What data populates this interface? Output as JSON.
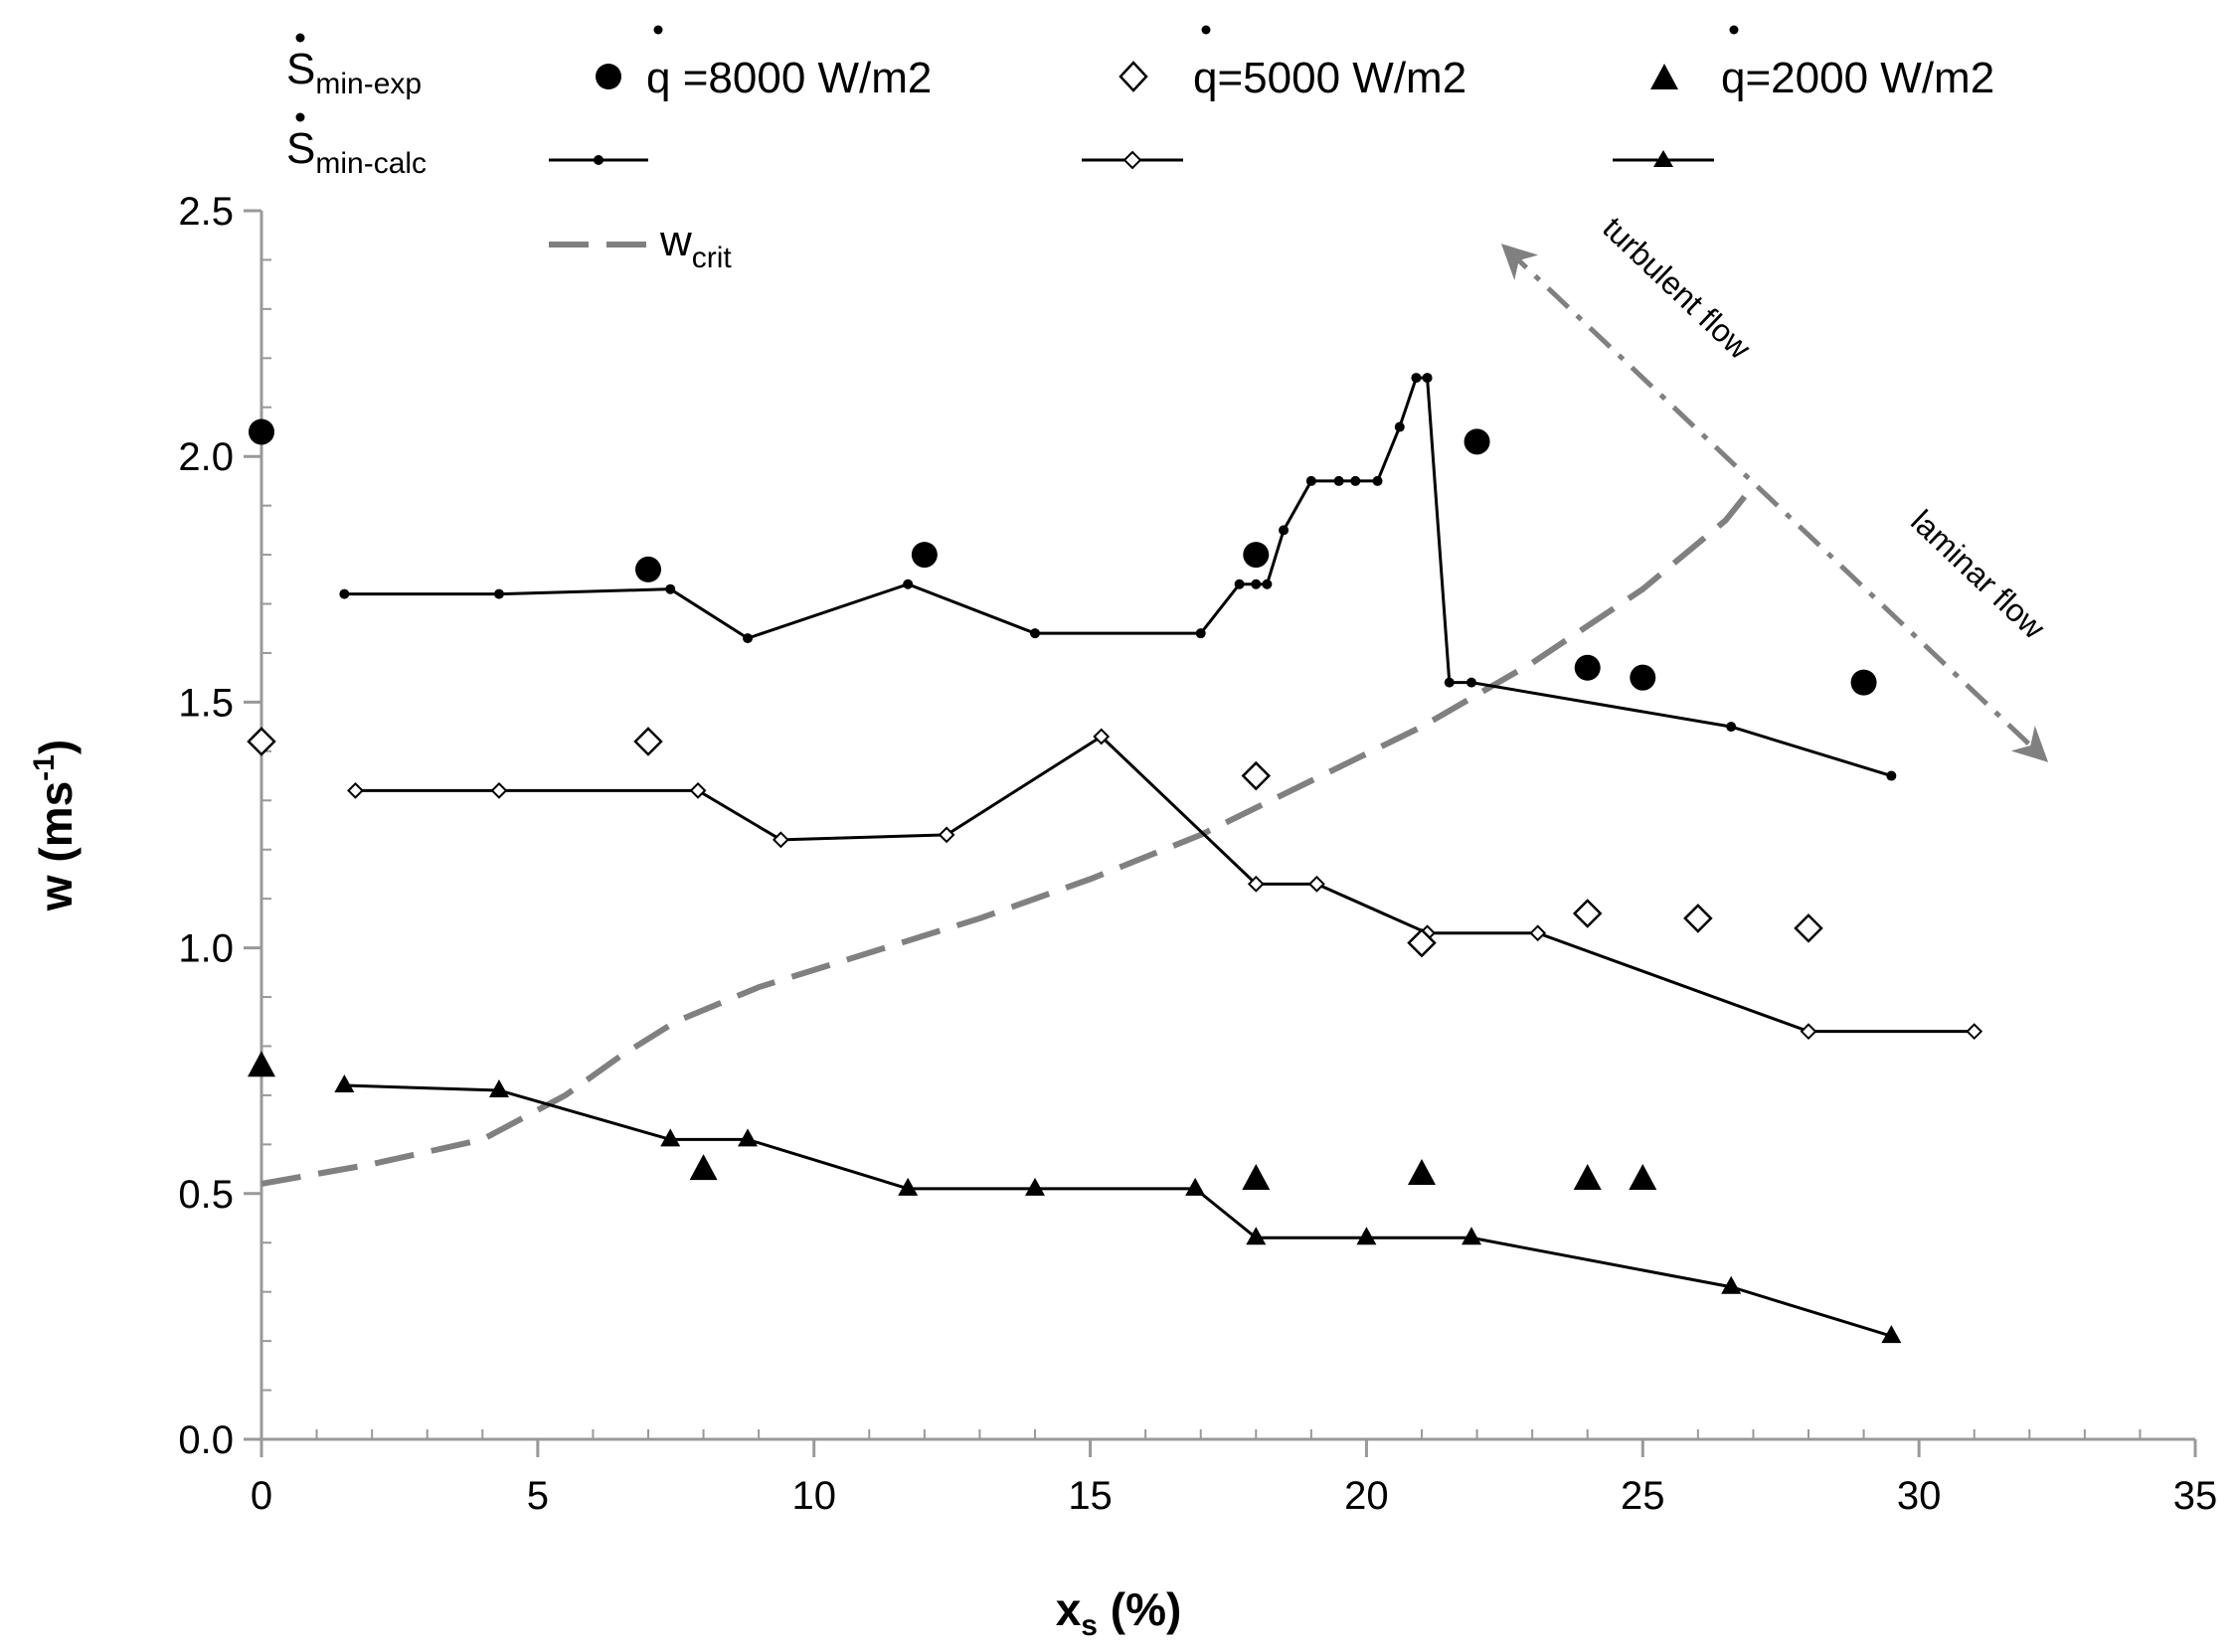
{
  "chart_data": {
    "type": "scatter",
    "title": "",
    "xlabel_main": "x",
    "xlabel_sub": "s",
    "xlabel_unit": " (%)",
    "ylabel_main": "w (ms",
    "ylabel_sup": "-1",
    "ylabel_close": ")",
    "xlim": [
      0,
      35
    ],
    "ylim": [
      0,
      2.5
    ],
    "x_ticks": [
      0,
      5,
      10,
      15,
      20,
      25,
      30,
      35
    ],
    "x_tick_labels": [
      "0",
      "5",
      "10",
      "15",
      "20",
      "25",
      "30",
      "35"
    ],
    "y_ticks": [
      0,
      0.5,
      1.0,
      1.5,
      2.0,
      2.5
    ],
    "y_tick_labels": [
      "0.0",
      "0.5",
      "1.0",
      "1.5",
      "2.0",
      "2.5"
    ],
    "grid": false,
    "legend": {
      "row1_symbol": "S",
      "row1_sub": "min-exp",
      "row2_symbol": "S",
      "row2_sub": "min-calc",
      "q_symbol": "q",
      "q8000_text": " =8000 W/m2",
      "q5000_text": "=5000 W/m2",
      "q2000_text": "=2000 W/m2",
      "wcrit_main": "w",
      "wcrit_sub": "crit"
    },
    "annotations": {
      "turbulent": "turbulent flow",
      "laminar": "laminar flow"
    },
    "series": [
      {
        "name": "q=8000 W/m2 (exp)",
        "kind": "marker",
        "marker": "circle",
        "x": [
          0,
          7,
          12,
          18,
          22,
          24,
          25,
          29
        ],
        "y": [
          2.05,
          1.77,
          1.8,
          1.8,
          2.03,
          1.57,
          1.55,
          1.54
        ]
      },
      {
        "name": "q=5000 W/m2 (exp)",
        "kind": "marker",
        "marker": "diamond-open",
        "x": [
          0,
          7,
          18,
          21,
          24,
          26,
          28
        ],
        "y": [
          1.42,
          1.42,
          1.35,
          1.01,
          1.07,
          1.06,
          1.04
        ]
      },
      {
        "name": "q=2000 W/m2 (exp)",
        "kind": "marker",
        "marker": "triangle",
        "x": [
          0,
          8,
          18,
          21,
          24,
          25
        ],
        "y": [
          0.76,
          0.55,
          0.53,
          0.54,
          0.53,
          0.53
        ]
      },
      {
        "name": "q=8000 W/m2 (calc)",
        "kind": "line",
        "marker": "dot",
        "x": [
          1.5,
          4.3,
          7.4,
          8.8,
          11.7,
          14,
          17,
          17.7,
          18,
          18.2,
          18.5,
          19,
          19.5,
          19.8,
          20.2,
          20.6,
          20.9,
          21.1,
          21.5,
          21.9,
          26.6,
          29.5
        ],
        "y": [
          1.72,
          1.72,
          1.73,
          1.63,
          1.74,
          1.64,
          1.64,
          1.74,
          1.74,
          1.74,
          1.85,
          1.95,
          1.95,
          1.95,
          1.95,
          2.06,
          2.16,
          2.16,
          1.54,
          1.54,
          1.45,
          1.35
        ]
      },
      {
        "name": "q=5000 W/m2 (calc)",
        "kind": "line",
        "marker": "diamond-small",
        "x": [
          1.7,
          4.3,
          7.9,
          9.4,
          12.4,
          15.2,
          18,
          19.1,
          21.1,
          23.1,
          28,
          31
        ],
        "y": [
          1.32,
          1.32,
          1.32,
          1.22,
          1.23,
          1.43,
          1.13,
          1.13,
          1.03,
          1.03,
          0.83,
          0.83
        ]
      },
      {
        "name": "q=2000 W/m2 (calc)",
        "kind": "line",
        "marker": "triangle-small",
        "x": [
          1.5,
          4.3,
          7.4,
          8.8,
          11.7,
          14,
          16.9,
          18,
          20,
          21.9,
          26.6,
          29.5
        ],
        "y": [
          0.72,
          0.71,
          0.61,
          0.61,
          0.51,
          0.51,
          0.51,
          0.41,
          0.41,
          0.41,
          0.31,
          0.21
        ]
      },
      {
        "name": "w_crit",
        "kind": "dashed",
        "x": [
          0,
          2,
          4,
          5.5,
          6.5,
          7.5,
          9,
          11,
          13,
          15,
          17,
          19,
          21,
          23,
          25,
          26.5,
          27
        ],
        "y": [
          0.52,
          0.56,
          0.61,
          0.7,
          0.78,
          0.85,
          0.92,
          0.99,
          1.06,
          1.14,
          1.23,
          1.34,
          1.45,
          1.58,
          1.73,
          1.87,
          1.94
        ]
      }
    ],
    "colors": {
      "markers": "#000000",
      "lines": "#000000",
      "wcrit": "#808080",
      "arrow": "#808080",
      "axis": "#999999"
    }
  }
}
